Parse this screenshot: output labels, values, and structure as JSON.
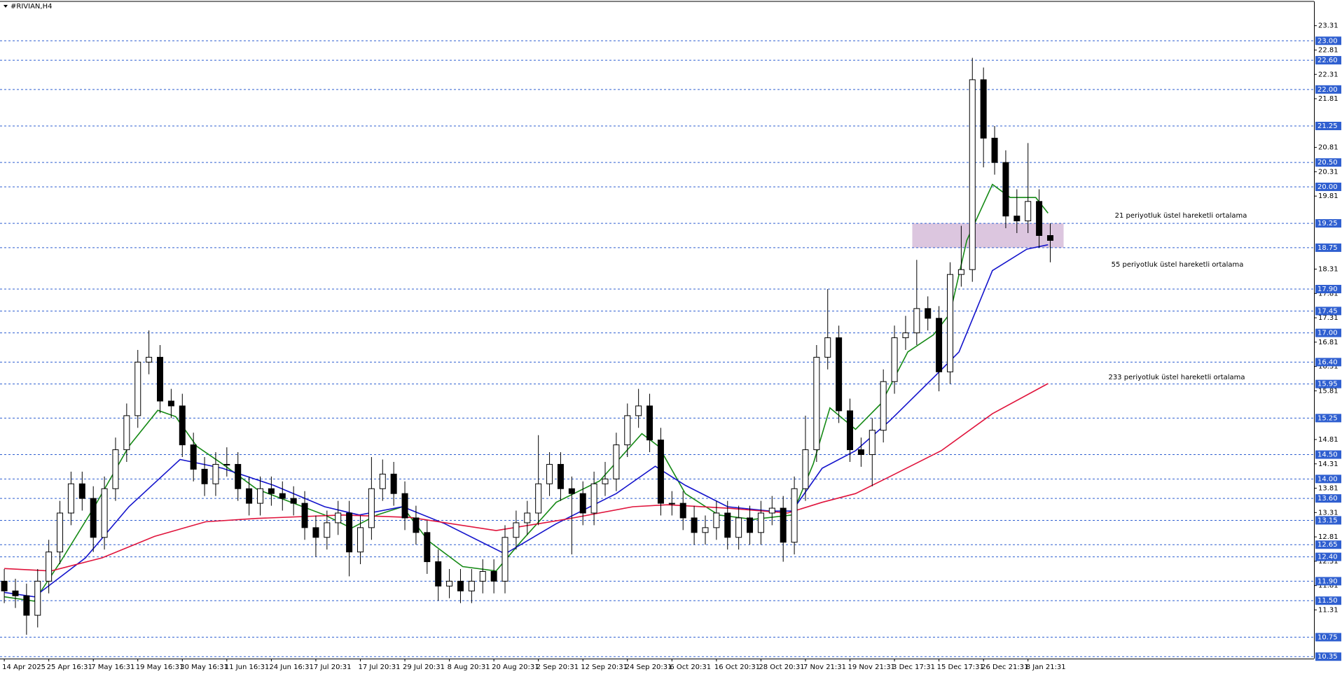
{
  "chart_data": {
    "type": "candlestick",
    "title": "#RIVIAN,H4",
    "xlim": [
      -0.384,
      117.7
    ],
    "ylim": [
      10.31,
      23.78
    ],
    "xticks": [
      {
        "value": 0,
        "label": "14 Apr 2025"
      },
      {
        "value": 4,
        "label": "25 Apr 16:31"
      },
      {
        "value": 8,
        "label": "7 May 16:31"
      },
      {
        "value": 12,
        "label": "19 May 16:31"
      },
      {
        "value": 16,
        "label": "30 May 16:31"
      },
      {
        "value": 20,
        "label": "11 Jun 16:31"
      },
      {
        "value": 24,
        "label": "24 Jun 16:31"
      },
      {
        "value": 28,
        "label": "7 Jul 20:31"
      },
      {
        "value": 32,
        "label": "17 Jul 20:31"
      },
      {
        "value": 36,
        "label": "29 Jul 20:31"
      },
      {
        "value": 40,
        "label": "8 Aug 20:31"
      },
      {
        "value": 44,
        "label": "20 Aug 20:31"
      },
      {
        "value": 48,
        "label": "2 Sep 20:31"
      },
      {
        "value": 52,
        "label": "12 Sep 20:31"
      },
      {
        "value": 56,
        "label": "24 Sep 20:31"
      },
      {
        "value": 60,
        "label": "6 Oct 20:31"
      },
      {
        "value": 64,
        "label": "16 Oct 20:31"
      },
      {
        "value": 68,
        "label": "28 Oct 20:31"
      },
      {
        "value": 72,
        "label": "7 Nov 21:31"
      },
      {
        "value": 76,
        "label": "19 Nov 21:31"
      },
      {
        "value": 80,
        "label": "3 Dec 17:31"
      },
      {
        "value": 84,
        "label": "15 Dec 17:31"
      },
      {
        "value": 88,
        "label": "26 Dec 21:31"
      },
      {
        "value": 92,
        "label": "8 Jan 21:31"
      }
    ],
    "yticks": [
      23.31,
      22.81,
      22.31,
      21.81,
      20.81,
      20.31,
      19.81,
      18.31,
      17.81,
      17.31,
      16.81,
      16.31,
      15.81,
      14.81,
      14.31,
      13.81,
      13.31,
      12.81,
      12.31,
      11.81,
      11.31
    ],
    "levels": [
      {
        "value": 23,
        "label": "23.00"
      },
      {
        "value": 22.6,
        "label": "22.60"
      },
      {
        "value": 22,
        "label": "22.00"
      },
      21.25,
      {
        "value": 20.5,
        "label": "20.50"
      },
      {
        "value": 20,
        "label": "20.00"
      },
      19.25,
      18.75,
      {
        "value": 17.9,
        "label": "17.90"
      },
      17.45,
      {
        "value": 17,
        "label": "17.00"
      },
      {
        "value": 16.4,
        "label": "16.40"
      },
      15.95,
      15.25,
      {
        "value": 14.5,
        "label": "14.50"
      },
      {
        "value": 14,
        "label": "14.00"
      },
      {
        "value": 13.6,
        "label": "13.60"
      },
      13.15,
      12.65,
      {
        "value": 12.4,
        "label": "12.40"
      },
      {
        "value": 11.9,
        "label": "11.90"
      },
      {
        "value": 11.5,
        "label": "11.50"
      },
      10.75,
      10.35
    ],
    "level_color": "#2f5fd0",
    "zone": {
      "x": [
        81.6,
        95.2
      ],
      "y": [
        18.75,
        19.25
      ],
      "color": "#dcc6df"
    },
    "open": [
      11.9,
      11.7,
      11.6,
      11.2,
      11.9,
      12.5,
      13.3,
      13.9,
      13.6,
      12.8,
      13.8,
      14.6,
      15.3,
      16.4,
      16.5,
      15.6,
      15.5,
      14.7,
      14.2,
      13.9,
      14.3,
      14.3,
      13.8,
      13.5,
      13.8,
      13.7,
      13.6,
      13.5,
      13.0,
      12.8,
      13.1,
      13.3,
      12.5,
      13.0,
      13.8,
      14.1,
      13.7,
      13.2,
      12.9,
      12.3,
      11.8,
      11.9,
      11.7,
      11.9,
      12.1,
      11.9,
      12.8,
      13.1,
      13.3,
      13.9,
      14.3,
      13.8,
      13.7,
      13.3,
      13.9,
      14.0,
      14.7,
      15.3,
      15.5,
      14.8,
      13.5,
      13.5,
      13.2,
      12.9,
      13.0,
      13.3,
      12.8,
      13.2,
      12.9,
      13.3,
      13.4,
      12.7,
      13.8,
      14.6,
      16.5,
      16.9,
      15.4,
      14.6,
      14.5,
      15.0,
      16.0,
      16.9,
      17.0,
      17.5,
      17.3,
      16.2,
      18.2,
      18.3,
      22.2,
      21.0,
      20.5,
      19.4,
      19.3,
      19.7,
      19.0
    ],
    "high": [
      12.15,
      11.95,
      11.85,
      12.15,
      12.75,
      13.55,
      14.15,
      14.15,
      13.85,
      14.05,
      14.85,
      15.55,
      16.65,
      17.05,
      16.75,
      15.85,
      15.75,
      14.95,
      14.45,
      14.55,
      14.65,
      14.55,
      14.05,
      14.05,
      14.05,
      13.95,
      13.85,
      13.75,
      13.25,
      13.35,
      13.55,
      13.55,
      13.25,
      14.45,
      14.4,
      14.35,
      13.95,
      13.45,
      13.15,
      12.55,
      12.15,
      12.15,
      12.15,
      12.35,
      12.35,
      13.05,
      13.35,
      13.55,
      14.9,
      14.55,
      14.55,
      14.05,
      13.95,
      14.15,
      14.35,
      14.95,
      15.55,
      15.85,
      15.75,
      15.05,
      13.75,
      13.75,
      13.45,
      13.25,
      13.55,
      13.55,
      13.45,
      13.45,
      13.55,
      13.65,
      13.65,
      14.05,
      15.3,
      16.75,
      17.9,
      17.15,
      15.65,
      14.85,
      15.25,
      16.25,
      17.15,
      17.35,
      18.5,
      17.75,
      17.55,
      18.45,
      19.2,
      22.65,
      22.45,
      21.25,
      20.75,
      19.95,
      20.9,
      19.95,
      19.25
    ],
    "low": [
      11.45,
      11.35,
      10.8,
      10.95,
      11.65,
      12.25,
      13.05,
      13.35,
      12.5,
      12.55,
      13.55,
      14.35,
      15.05,
      16.15,
      15.35,
      15.25,
      14.45,
      13.95,
      13.65,
      13.65,
      14.05,
      13.55,
      13.25,
      13.25,
      13.45,
      13.35,
      13.25,
      12.75,
      12.4,
      12.55,
      12.85,
      12.0,
      12.25,
      12.75,
      13.55,
      13.45,
      12.95,
      12.65,
      12.05,
      11.5,
      11.55,
      11.45,
      11.45,
      11.65,
      11.65,
      11.65,
      12.55,
      12.85,
      13.05,
      13.65,
      13.55,
      12.45,
      13.05,
      13.05,
      13.65,
      13.75,
      14.45,
      15.05,
      14.55,
      13.25,
      13.25,
      12.95,
      12.65,
      12.65,
      12.75,
      12.55,
      12.55,
      12.65,
      12.65,
      13.05,
      12.3,
      12.45,
      13.55,
      14.35,
      16.25,
      15.15,
      14.35,
      14.25,
      13.85,
      14.75,
      15.75,
      16.65,
      16.75,
      17.05,
      15.8,
      15.95,
      17.95,
      18.05,
      20.4,
      20.25,
      19.15,
      19.05,
      19.05,
      18.75,
      18.45
    ],
    "close": [
      11.7,
      11.6,
      11.2,
      11.9,
      12.5,
      13.3,
      13.9,
      13.6,
      12.8,
      13.8,
      14.6,
      15.3,
      16.4,
      16.5,
      15.6,
      15.5,
      14.7,
      14.2,
      13.9,
      14.3,
      14.3,
      13.8,
      13.5,
      13.8,
      13.7,
      13.6,
      13.5,
      13.0,
      12.8,
      13.1,
      13.3,
      12.5,
      13.0,
      13.8,
      14.1,
      13.7,
      13.2,
      12.9,
      12.3,
      11.8,
      11.9,
      11.7,
      11.9,
      12.1,
      11.9,
      12.8,
      13.1,
      13.3,
      13.9,
      14.3,
      13.8,
      13.7,
      13.3,
      13.9,
      14.0,
      14.7,
      15.3,
      15.5,
      14.8,
      13.5,
      13.5,
      13.2,
      12.9,
      13.0,
      13.3,
      12.8,
      13.2,
      12.9,
      13.3,
      13.4,
      12.7,
      13.8,
      14.6,
      16.5,
      16.9,
      15.4,
      14.6,
      14.5,
      15.0,
      16.0,
      16.9,
      17.0,
      17.5,
      17.3,
      16.2,
      18.2,
      18.3,
      22.2,
      21.0,
      20.5,
      19.4,
      19.3,
      19.7,
      19.0,
      18.9
    ],
    "series": [
      {
        "name": "21 periyotluk üstel hareketli ortalama",
        "color": "#168a16",
        "x": [
          0,
          2.7,
          5,
          8.1,
          11.2,
          13.8,
          15.4,
          17.3,
          19.6,
          22.7,
          25.8,
          28.8,
          31.2,
          33.5,
          35.8,
          38.1,
          41.2,
          44.2,
          46.5,
          49.6,
          53.5,
          57.3,
          58.8,
          61.2,
          64.2,
          67.3,
          70.8,
          72.7,
          74.2,
          76.5,
          78.8,
          81.2,
          83.5,
          85,
          86.5,
          88.8,
          90.4,
          92.7,
          93.8
        ],
        "values": [
          11.58,
          11.49,
          12.28,
          13.43,
          14.67,
          15.41,
          15.28,
          14.67,
          14.31,
          13.79,
          13.52,
          13.26,
          12.99,
          13.26,
          13.43,
          12.73,
          12.2,
          12.11,
          12.73,
          13.52,
          13.96,
          14.93,
          14.67,
          13.7,
          13.26,
          13.17,
          13.26,
          14.31,
          15.46,
          15.02,
          15.55,
          16.61,
          16.96,
          17.4,
          18.9,
          20.05,
          19.78,
          19.78,
          19.46
        ]
      },
      {
        "name": "55 periyotluk üstel hareketli ortalama",
        "color": "#1414cc",
        "x": [
          0,
          2.7,
          7.3,
          11.2,
          15.8,
          19.6,
          24.2,
          28.8,
          31.9,
          35.8,
          39.6,
          45,
          49.6,
          55,
          58.5,
          61.2,
          65,
          68.8,
          70.8,
          73.5,
          76.5,
          79.6,
          83.5,
          85.8,
          88.8,
          91.9,
          93.8
        ],
        "values": [
          11.67,
          11.58,
          12.38,
          13.43,
          14.4,
          14.22,
          13.87,
          13.43,
          13.26,
          13.43,
          13.08,
          12.46,
          13.08,
          13.7,
          14.26,
          13.87,
          13.43,
          13.34,
          13.34,
          14.22,
          14.58,
          15.2,
          16.08,
          16.61,
          18.28,
          18.72,
          18.81
        ]
      },
      {
        "name": "233 periyotluk üstel hareketli ortalama",
        "color": "#e0143c",
        "x": [
          0,
          4.2,
          8.8,
          13.5,
          18.1,
          22.7,
          30.4,
          36.5,
          44.2,
          50.4,
          56.5,
          59.6,
          65,
          70.4,
          73.5,
          76.5,
          79.6,
          84.2,
          88.8,
          93.8
        ],
        "values": [
          12.16,
          12.11,
          12.38,
          12.82,
          13.12,
          13.19,
          13.26,
          13.21,
          12.94,
          13.17,
          13.43,
          13.47,
          13.4,
          13.3,
          13.52,
          13.7,
          14.05,
          14.58,
          15.34,
          15.96
        ]
      }
    ]
  }
}
